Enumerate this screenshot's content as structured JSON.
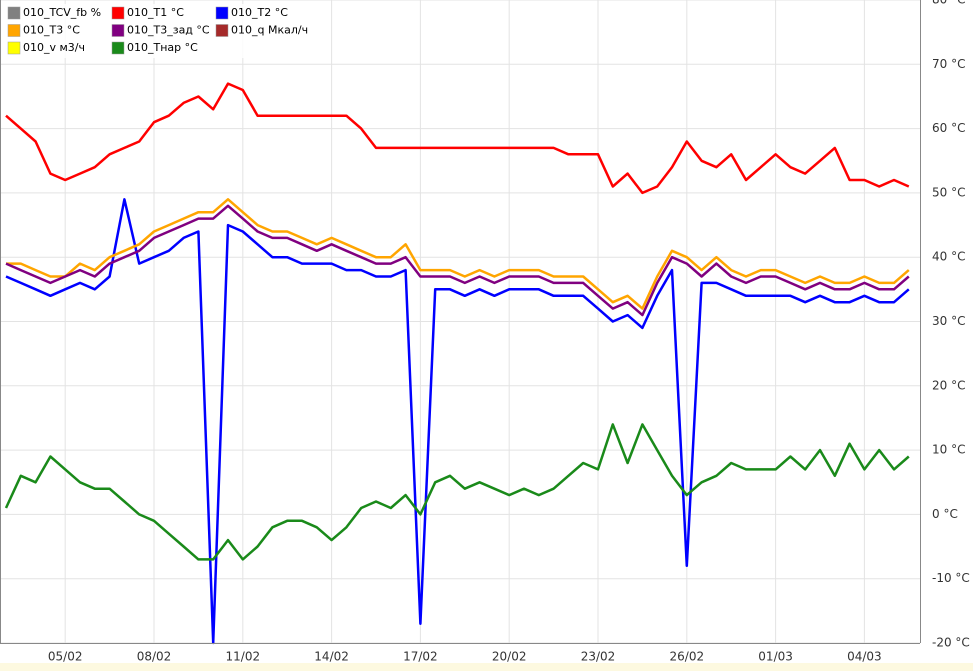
{
  "chart_data": {
    "type": "line",
    "categories": [
      null,
      null,
      null,
      null,
      "05/02",
      null,
      null,
      null,
      null,
      null,
      "08/02",
      null,
      null,
      null,
      null,
      null,
      "11/02",
      null,
      null,
      null,
      null,
      null,
      "14/02",
      null,
      null,
      null,
      null,
      null,
      "17/02",
      null,
      null,
      null,
      null,
      null,
      "20/02",
      null,
      null,
      null,
      null,
      null,
      "23/02",
      null,
      null,
      null,
      null,
      null,
      "26/02",
      null,
      null,
      null,
      null,
      null,
      "01/03",
      null,
      null,
      null,
      null,
      null,
      "04/03",
      null,
      null,
      null
    ],
    "ylim": [
      -20,
      80
    ],
    "yticks": [
      {
        "value": -20,
        "label": "-20 °C"
      },
      {
        "value": -10,
        "label": "-10 °C"
      },
      {
        "value": 0,
        "label": "0 °C"
      },
      {
        "value": 10,
        "label": "10 °C"
      },
      {
        "value": 20,
        "label": "20 °C"
      },
      {
        "value": 30,
        "label": "30 °C"
      },
      {
        "value": 40,
        "label": "40 °C"
      },
      {
        "value": 50,
        "label": "50 °C"
      },
      {
        "value": 60,
        "label": "60 °C"
      },
      {
        "value": 70,
        "label": "70 °C"
      },
      {
        "value": 80,
        "label": "80 °C"
      }
    ],
    "grid": true,
    "legend": "upper left",
    "series": [
      {
        "name": "010_TCV_fb %",
        "color": "#808080",
        "values": [
          null,
          null,
          null,
          null,
          null,
          null,
          null,
          null,
          null,
          null,
          null,
          null,
          null,
          null,
          null,
          null,
          null,
          null,
          null,
          null,
          null,
          null,
          null,
          null,
          null,
          null,
          null,
          null,
          null,
          null,
          null,
          null,
          null,
          null,
          null,
          null,
          null,
          null,
          null,
          null,
          null,
          null,
          null,
          null,
          null,
          null,
          null,
          null,
          null,
          null,
          null,
          null,
          null,
          null,
          null,
          null,
          null,
          null,
          null,
          null,
          null,
          null
        ]
      },
      {
        "name": "010_T1 °C",
        "color": "#ff0000",
        "values": [
          62,
          60,
          58,
          53,
          52,
          53,
          54,
          56,
          57,
          58,
          61,
          62,
          64,
          65,
          63,
          67,
          66,
          62,
          62,
          62,
          62,
          62,
          62,
          62,
          60,
          57,
          57,
          57,
          57,
          57,
          57,
          57,
          57,
          57,
          57,
          57,
          57,
          57,
          56,
          56,
          56,
          51,
          53,
          50,
          51,
          54,
          58,
          55,
          54,
          56,
          52,
          54,
          56,
          54,
          53,
          55,
          57,
          52,
          52,
          51,
          52,
          51
        ]
      },
      {
        "name": "010_T2 °C",
        "color": "#0000ff",
        "values": [
          37,
          36,
          35,
          34,
          35,
          36,
          35,
          37,
          49,
          39,
          40,
          41,
          43,
          44,
          -20,
          45,
          44,
          42,
          40,
          40,
          39,
          39,
          39,
          38,
          38,
          37,
          37,
          38,
          -17,
          35,
          35,
          34,
          35,
          34,
          35,
          35,
          35,
          34,
          34,
          34,
          32,
          30,
          31,
          29,
          34,
          38,
          -8,
          36,
          36,
          35,
          34,
          34,
          34,
          34,
          33,
          34,
          33,
          33,
          34,
          33,
          33,
          35
        ]
      },
      {
        "name": "010_T3 °C",
        "color": "#ffa500",
        "values": [
          39,
          39,
          38,
          37,
          37,
          39,
          38,
          40,
          41,
          42,
          44,
          45,
          46,
          47,
          47,
          49,
          47,
          45,
          44,
          44,
          43,
          42,
          43,
          42,
          41,
          40,
          40,
          42,
          38,
          38,
          38,
          37,
          38,
          37,
          38,
          38,
          38,
          37,
          37,
          37,
          35,
          33,
          34,
          32,
          37,
          41,
          40,
          38,
          40,
          38,
          37,
          38,
          38,
          37,
          36,
          37,
          36,
          36,
          37,
          36,
          36,
          38
        ]
      },
      {
        "name": "010_T3_зад °C",
        "color": "#800080",
        "values": [
          39,
          38,
          37,
          36,
          37,
          38,
          37,
          39,
          40,
          41,
          43,
          44,
          45,
          46,
          46,
          48,
          46,
          44,
          43,
          43,
          42,
          41,
          42,
          41,
          40,
          39,
          39,
          40,
          37,
          37,
          37,
          36,
          37,
          36,
          37,
          37,
          37,
          36,
          36,
          36,
          34,
          32,
          33,
          31,
          36,
          40,
          39,
          37,
          39,
          37,
          36,
          37,
          37,
          36,
          35,
          36,
          35,
          35,
          36,
          35,
          35,
          37
        ]
      },
      {
        "name": "010_q Мкал/ч",
        "color": "#a52a2a",
        "values": [
          null,
          null,
          null,
          null,
          null,
          null,
          null,
          null,
          null,
          null,
          null,
          null,
          null,
          null,
          null,
          null,
          null,
          null,
          null,
          null,
          null,
          null,
          null,
          null,
          null,
          null,
          null,
          null,
          null,
          null,
          null,
          null,
          null,
          null,
          null,
          null,
          null,
          null,
          null,
          null,
          null,
          null,
          null,
          null,
          null,
          null,
          null,
          null,
          null,
          null,
          null,
          null,
          null,
          null,
          null,
          null,
          null,
          null,
          null,
          null,
          null,
          null
        ]
      },
      {
        "name": "010_v м3/ч",
        "color": "#ffff00",
        "values": [
          null,
          null,
          null,
          null,
          null,
          null,
          null,
          null,
          null,
          null,
          null,
          null,
          null,
          null,
          null,
          null,
          null,
          null,
          null,
          null,
          null,
          null,
          null,
          null,
          null,
          null,
          null,
          null,
          null,
          null,
          null,
          null,
          null,
          null,
          null,
          null,
          null,
          null,
          null,
          null,
          null,
          null,
          null,
          null,
          null,
          null,
          null,
          null,
          null,
          null,
          null,
          null,
          null,
          null,
          null,
          null,
          null,
          null,
          null,
          null,
          null,
          null
        ]
      },
      {
        "name": "010_Tнар °C",
        "color": "#1a8a1a",
        "values": [
          1,
          6,
          5,
          9,
          7,
          5,
          4,
          4,
          2,
          0,
          -1,
          -3,
          -5,
          -7,
          -7,
          -4,
          -7,
          -5,
          -2,
          -1,
          -1,
          -2,
          -4,
          -2,
          1,
          2,
          1,
          3,
          0,
          5,
          6,
          4,
          5,
          4,
          3,
          4,
          3,
          4,
          6,
          8,
          7,
          14,
          8,
          14,
          10,
          6,
          3,
          5,
          6,
          8,
          7,
          7,
          7,
          9,
          7,
          10,
          6,
          11,
          7,
          10,
          7,
          9
        ]
      }
    ]
  }
}
